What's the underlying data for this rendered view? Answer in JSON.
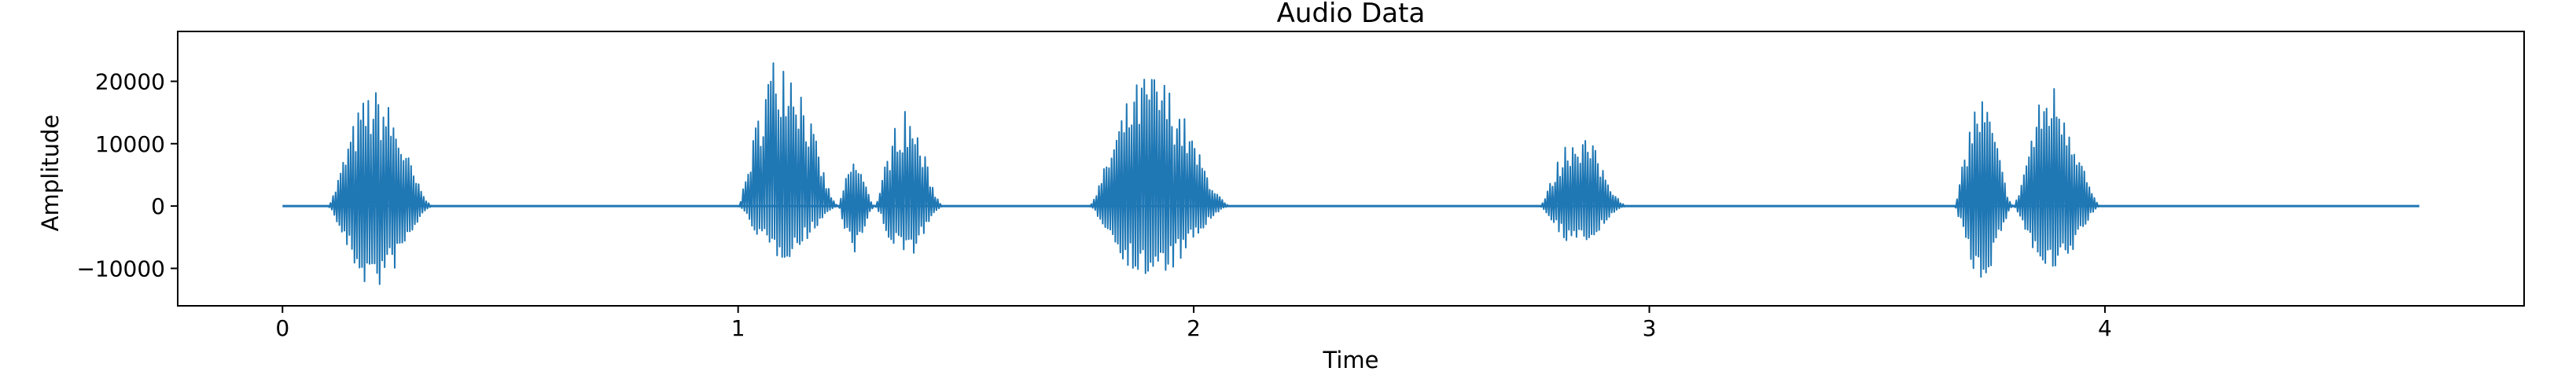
{
  "chart_data": {
    "type": "line",
    "title": "Audio Data",
    "xlabel": "Time",
    "ylabel": "Amplitude",
    "xlim": [
      -0.23,
      4.92
    ],
    "ylim": [
      -16000,
      28000
    ],
    "xticks": [
      0,
      1,
      2,
      3,
      4
    ],
    "yticks": [
      -10000,
      0,
      10000,
      20000
    ],
    "ytick_labels": [
      "−10000",
      "0",
      "10000",
      "20000"
    ],
    "grid": false,
    "legend": "none",
    "line_color": "#1f77b4",
    "signal_range": [
      0,
      4.69
    ],
    "bursts": [
      {
        "start": 0.1,
        "end": 0.33,
        "peak_pos": 18700,
        "peak_neg": -13500
      },
      {
        "start": 1.0,
        "end": 1.22,
        "peak_pos": 25800,
        "peak_neg": -8500
      },
      {
        "start": 1.22,
        "end": 1.3,
        "peak_pos": 7500,
        "peak_neg": -7500
      },
      {
        "start": 1.3,
        "end": 1.45,
        "peak_pos": 15500,
        "peak_neg": -8500
      },
      {
        "start": 1.77,
        "end": 2.08,
        "peak_pos": 21500,
        "peak_neg": -12000
      },
      {
        "start": 2.76,
        "end": 2.95,
        "peak_pos": 12000,
        "peak_neg": -6500
      },
      {
        "start": 3.67,
        "end": 3.8,
        "peak_pos": 17800,
        "peak_neg": -12000
      },
      {
        "start": 3.8,
        "end": 3.99,
        "peak_pos": 20000,
        "peak_neg": -11500
      }
    ]
  }
}
